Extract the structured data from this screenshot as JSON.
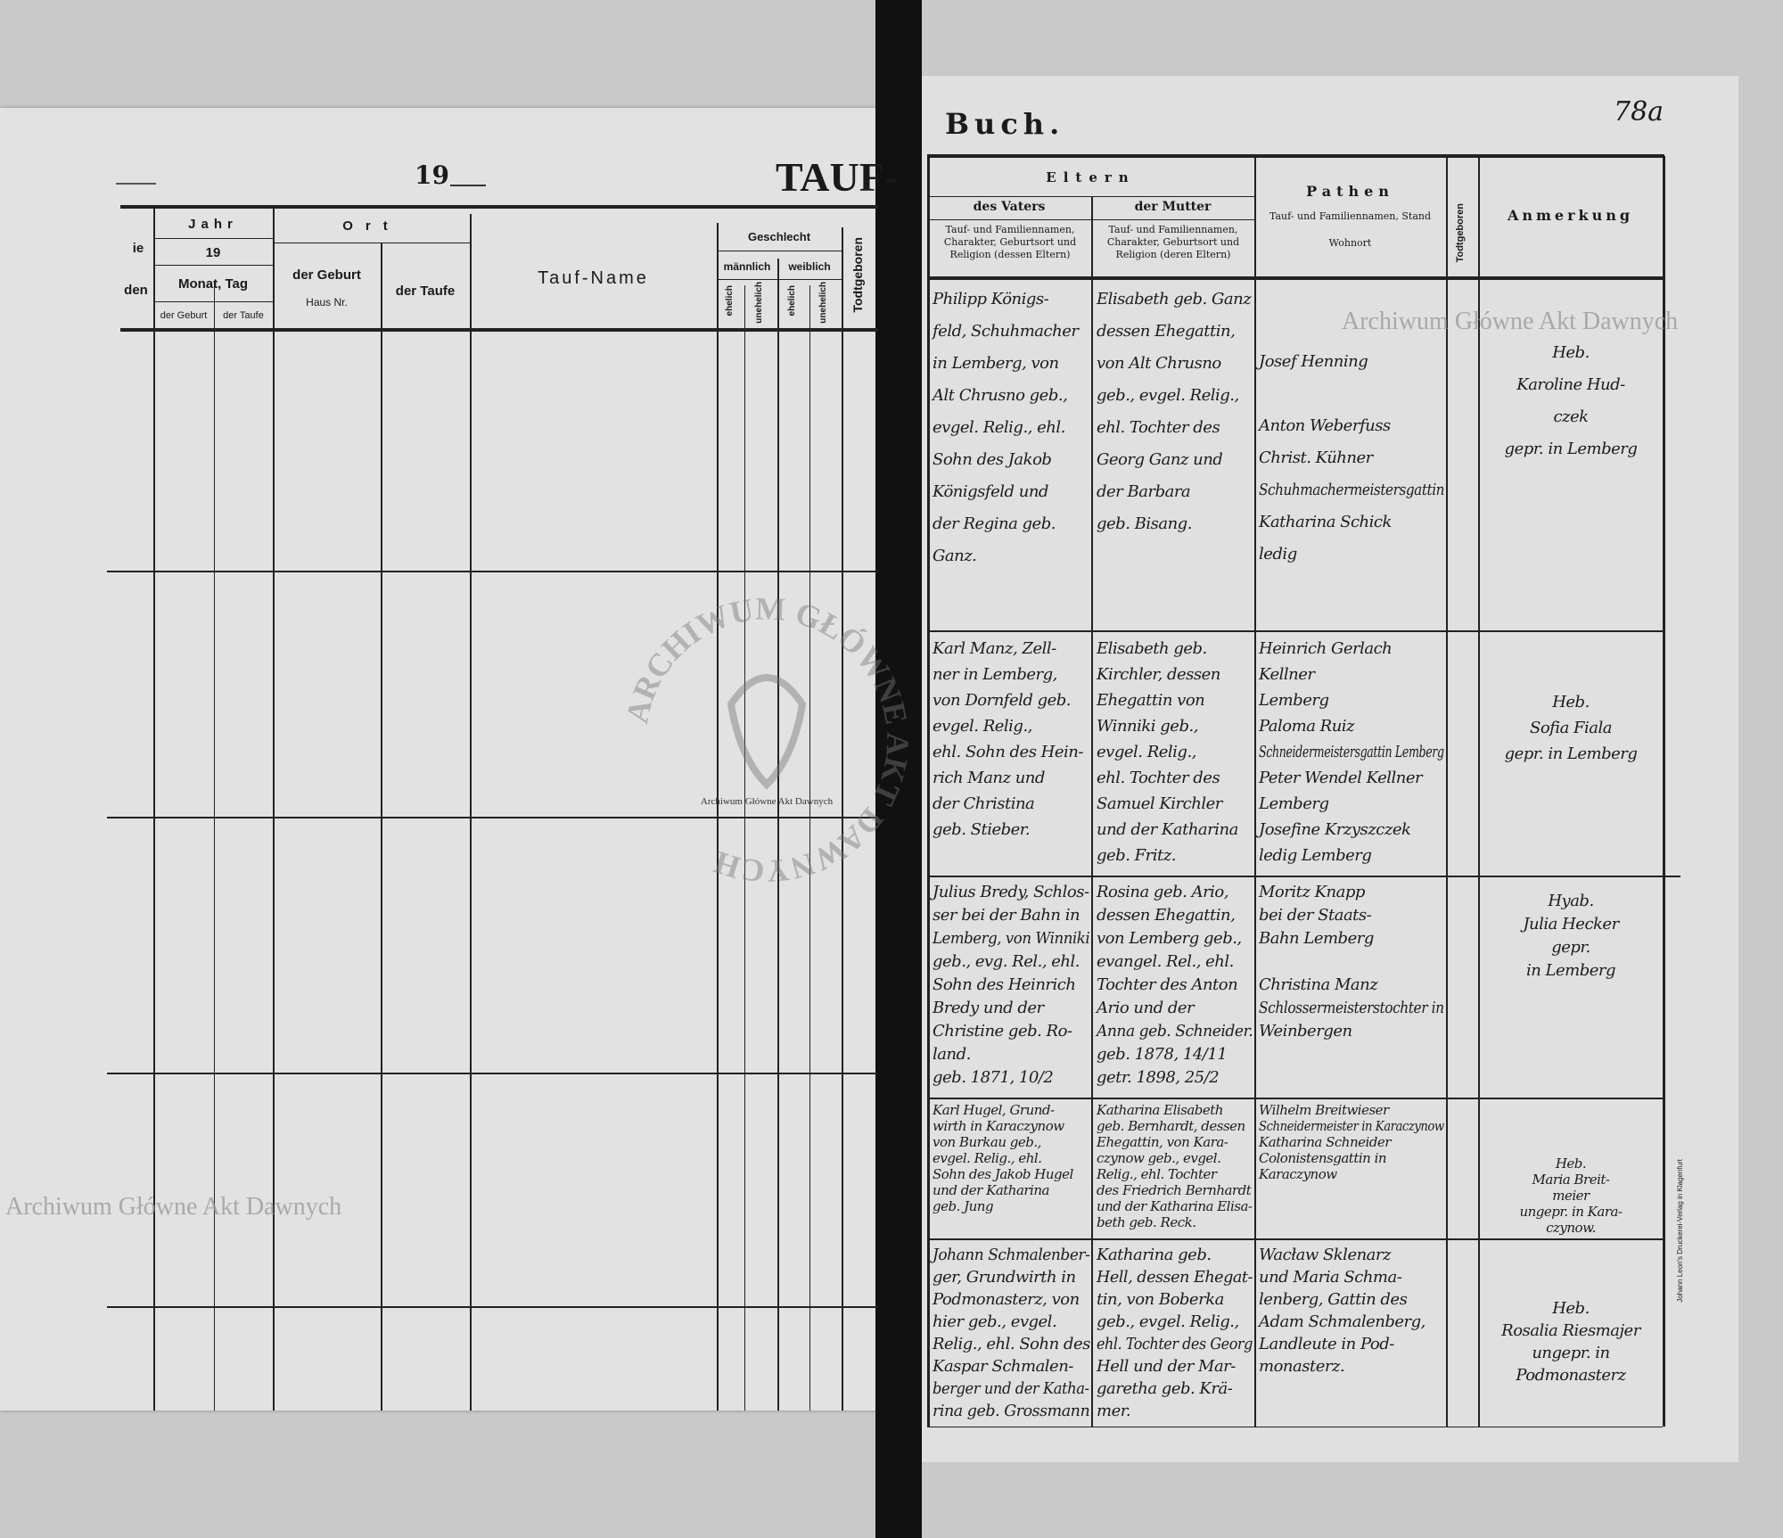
{
  "left_page": {
    "year_prefix": "19",
    "title": "TAUF-",
    "headers": {
      "cut_col_top": "ie",
      "cut_col_bottom": "den",
      "jahr": "Jahr",
      "jahr_value": "19",
      "monat_tag": "Monat, Tag",
      "der_geburt_small": "der Geburt",
      "der_taufe_small": "der Taufe",
      "ort": "Ort",
      "ort_geburt": "der Geburt",
      "haus_nr": "Haus Nr.",
      "ort_taufe": "der Taufe",
      "tauf_name": "Tauf-Name",
      "geschlecht": "Geschlecht",
      "maennlich": "männlich",
      "weiblich": "weiblich",
      "ehelich_m": "ehelich",
      "unehelich_m": "unehelich",
      "ehelich_w": "ehelich",
      "unehelich_w": "unehelich",
      "todtgeboren": "Todtgeboren"
    }
  },
  "right_page": {
    "title": "Buch.",
    "folio": "78a",
    "headers": {
      "eltern": "Eltern",
      "des_vaters": "des Vaters",
      "der_mutter": "der Mutter",
      "vater_desc": "Tauf- und Familiennamen, Charakter, Geburtsort und Religion (dessen Eltern)",
      "mutter_desc": "Tauf- und Familiennamen, Charakter, Geburtsort und Religion (deren Eltern)",
      "pathen": "Pathen",
      "pathen_desc": "Tauf- und Familiennamen, Stand",
      "wohnort": "Wohnort",
      "todtgeboren": "Todtgeboren",
      "anmerkung": "Anmerkung"
    },
    "printer_note": "Johann Leon's Druckerei-Verlag in Klagenfurt",
    "rows": [
      {
        "vater": [
          "Philipp Königs-",
          "feld, Schuhmacher",
          "in Lemberg, von",
          "Alt Chrusno geb.,",
          "evgel. Relig., ehl.",
          "Sohn des Jakob",
          "Königsfeld und",
          "der Regina geb.",
          "Ganz."
        ],
        "mutter": [
          "Elisabeth geb. Ganz",
          "dessen Ehegattin,",
          "von Alt Chrusno",
          "geb., evgel. Relig.,",
          "ehl. Tochter des",
          "Georg Ganz und",
          "der Barbara",
          "geb. Bisang."
        ],
        "pathen": [
          "Josef Henning",
          "",
          "Anton Weberfuss",
          "Christ. Kühner",
          "Schuhmachermeistersgattin",
          "Katharina Schick",
          "ledig"
        ],
        "anmerkung": [
          "Heb.",
          "Karoline Hud-",
          "czek",
          "gepr. in Lemberg"
        ]
      },
      {
        "vater": [
          "Karl Manz, Zell-",
          "ner in Lemberg,",
          "von Dornfeld geb.",
          "evgel. Relig.,",
          "ehl. Sohn des Hein-",
          "rich Manz und",
          "der Christina",
          "geb. Stieber."
        ],
        "mutter": [
          "Elisabeth geb.",
          "Kirchler, dessen",
          "Ehegattin von",
          "Winniki geb.,",
          "evgel. Relig.,",
          "ehl. Tochter des",
          "Samuel Kirchler",
          "und der Katharina",
          "geb. Fritz."
        ],
        "pathen": [
          "Heinrich Gerlach",
          "Kellner",
          "Lemberg",
          "Paloma Ruiz",
          "Schneidermeistersgattin Lemberg",
          "Peter Wendel Kellner",
          "Lemberg",
          "Josefine Krzyszczek",
          "ledig Lemberg"
        ],
        "anmerkung": [
          "Heb.",
          "Sofia Fiala",
          "gepr. in Lemberg"
        ]
      },
      {
        "vater": [
          "Julius Bredy, Schlos-",
          "ser bei der Bahn in",
          "Lemberg, von Winniki",
          "geb., evg. Rel., ehl.",
          "Sohn des Heinrich",
          "Bredy und der",
          "Christine geb. Ro-",
          "land.",
          "geb. 1871, 10/2"
        ],
        "mutter": [
          "Rosina geb. Ario,",
          "dessen Ehegattin,",
          "von Lemberg geb.,",
          "evangel. Rel., ehl.",
          "Tochter des Anton",
          "Ario und der",
          "Anna geb. Schneider.",
          "geb. 1878, 14/11",
          "getr. 1898, 25/2"
        ],
        "pathen": [
          "Moritz Knapp",
          "bei der Staats-",
          "Bahn Lemberg",
          "",
          "Christina Manz",
          "Schlossermeisterstochter in",
          "Weinbergen"
        ],
        "anmerkung": [
          "Hyab.",
          "Julia Hecker",
          "gepr.",
          "in Lemberg"
        ]
      },
      {
        "vater": [
          "Karl Hugel, Grund-",
          "wirth in Karaczynow",
          "von Burkau geb.,",
          "evgel. Relig., ehl.",
          "Sohn des Jakob Hugel",
          "und der Katharina",
          "geb. Jung"
        ],
        "mutter": [
          "Katharina Elisabeth",
          "geb. Bernhardt, dessen",
          "Ehegattin, von Kara-",
          "czynow geb., evgel.",
          "Relig., ehl. Tochter",
          "des Friedrich Bernhardt",
          "und der Katharina Elisa-",
          "beth geb. Reck."
        ],
        "pathen": [
          "Wilhelm Breitwieser",
          "Schneidermeister in Karaczynow",
          "Katharina Schneider",
          "Colonistensgattin in",
          "Karaczynow"
        ],
        "anmerkung": [
          "Heb.",
          "Maria Breit-",
          "meier",
          "ungepr. in Kara-",
          "czynow."
        ]
      },
      {
        "vater": [
          "Johann Schmalenber-",
          "ger, Grundwirth in",
          "Podmonasterz, von",
          "hier geb., evgel.",
          "Relig., ehl. Sohn des",
          "Kaspar Schmalen-",
          "berger und der Katha-",
          "rina geb. Grossmann"
        ],
        "mutter": [
          "Katharina geb.",
          "Hell, dessen Ehegat-",
          "tin, von Boberka",
          "geb., evgel. Relig.,",
          "ehl. Tochter des Georg",
          "Hell und der Mar-",
          "garetha geb. Krä-",
          "mer."
        ],
        "pathen": [
          "Wacław Sklenarz",
          "und Maria Schma-",
          "lenberg, Gattin des",
          "Adam Schmalenberg,",
          "Landleute in Pod-",
          "monasterz."
        ],
        "anmerkung": [
          "Heb.",
          "Rosalia Riesmajer",
          "ungepr. in",
          "Podmonasterz"
        ]
      }
    ]
  },
  "watermarks": {
    "top_right": "Archiwum Główne Akt Dawnych",
    "left": "Archiwum Główne Akt Dawnych",
    "stamp_ring": "ARCHIWUM GŁÓWNE AKT DAWNYCH",
    "stamp_small": "Archiwum Główne Akt Dawnych"
  },
  "colors": {
    "paper": "#e2e2e2",
    "ink": "#1a1a1a",
    "gutter": "#111111"
  }
}
